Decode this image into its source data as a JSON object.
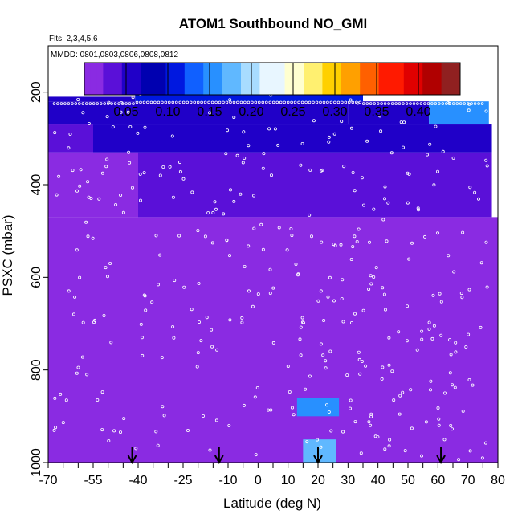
{
  "chart_data": {
    "type": "heatmap",
    "title": "ATOM1 Southbound NO_GMI",
    "subtitle_flights": "Flts: 2,3,4,5,6",
    "subtitle_dates": "MMDD: 0801,0803,0806,0808,0812",
    "xlabel": "Latitude (deg N)",
    "ylabel": "PSXC (mbar)",
    "xlim": [
      -70,
      80
    ],
    "ylim": [
      1000,
      100
    ],
    "x_tick_labels": [
      "-70",
      "-55",
      "-40",
      "-25",
      "-10",
      "0",
      "10",
      "20",
      "30",
      "40",
      "50",
      "60",
      "70",
      "80"
    ],
    "x_tick_values": [
      -70,
      -55,
      -40,
      -25,
      -10,
      0,
      10,
      20,
      30,
      40,
      50,
      60,
      70,
      80
    ],
    "y_tick_labels": [
      "200",
      "400",
      "600",
      "800",
      "1000"
    ],
    "y_tick_values": [
      200,
      400,
      600,
      800,
      1000
    ],
    "colorbar": {
      "min": 0.0,
      "max": 0.45,
      "tick_labels": [
        "0.05",
        "0.10",
        "0.15",
        "0.20",
        "0.25",
        "0.30",
        "0.35",
        "0.40"
      ],
      "tick_values": [
        0.05,
        0.1,
        0.15,
        0.2,
        0.25,
        0.3,
        0.35,
        0.4
      ],
      "colors": [
        "#8a2be2",
        "#5a10d8",
        "#2000c8",
        "#0000b0",
        "#0018e0",
        "#1060ff",
        "#2890ff",
        "#60b8ff",
        "#a8dcff",
        "#e8f6ff",
        "#ffffd0",
        "#fff070",
        "#ffd000",
        "#ffa000",
        "#ff6000",
        "#ff1a00",
        "#e00000",
        "#b00000",
        "#902020"
      ]
    },
    "regions": [
      {
        "lat": [
          -70,
          80
        ],
        "p": [
          1000,
          470
        ],
        "value": 0.012
      },
      {
        "lat": [
          -70,
          -40
        ],
        "p": [
          470,
          330
        ],
        "value": 0.02
      },
      {
        "lat": [
          -40,
          78
        ],
        "p": [
          470,
          330
        ],
        "value": 0.028
      },
      {
        "lat": [
          -70,
          -55
        ],
        "p": [
          330,
          270
        ],
        "value": 0.035
      },
      {
        "lat": [
          -55,
          78
        ],
        "p": [
          330,
          270
        ],
        "value": 0.055
      },
      {
        "lat": [
          -70,
          -40
        ],
        "p": [
          270,
          220
        ],
        "value": 0.065
      },
      {
        "lat": [
          -40,
          30
        ],
        "p": [
          270,
          220
        ],
        "value": 0.07
      },
      {
        "lat": [
          30,
          57
        ],
        "p": [
          270,
          220
        ],
        "value": 0.065
      },
      {
        "lat": [
          57,
          77
        ],
        "p": [
          270,
          220
        ],
        "value": 0.16
      },
      {
        "lat": [
          -41,
          35
        ],
        "p": [
          220,
          170
        ],
        "value": 0.11
      },
      {
        "lat": [
          -70,
          -41
        ],
        "p": [
          220,
          210
        ],
        "value": 0.07
      },
      {
        "lat": [
          13,
          27
        ],
        "p": [
          900,
          860
        ],
        "value": 0.16
      },
      {
        "lat": [
          15,
          26
        ],
        "p": [
          1000,
          950
        ],
        "value": 0.18
      }
    ],
    "flight_arrows_lat": [
      -42,
      -13,
      20,
      61
    ],
    "annotation": "white circles mark sampled data points"
  }
}
